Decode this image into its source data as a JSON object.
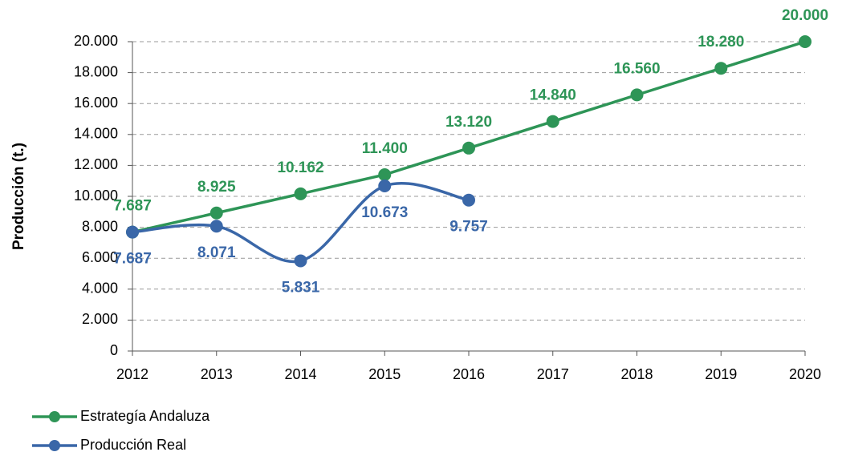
{
  "chart_data": {
    "type": "line",
    "y_label": "Producción (t.)",
    "x": [
      2012,
      2013,
      2014,
      2015,
      2016,
      2017,
      2018,
      2019,
      2020
    ],
    "xlim": [
      2012,
      2020
    ],
    "xticks": [
      2012,
      2013,
      2014,
      2015,
      2016,
      2017,
      2018,
      2019,
      2020
    ],
    "ylim": [
      0,
      20000
    ],
    "yticks": [
      0,
      {
        "value": 2000,
        "label": "2.000"
      },
      {
        "value": 4000,
        "label": "4.000"
      },
      {
        "value": 6000,
        "label": "6.000"
      },
      {
        "value": 8000,
        "label": "8.000"
      },
      {
        "value": 10000,
        "label": "10.000"
      },
      {
        "value": 12000,
        "label": "12.000"
      },
      {
        "value": 14000,
        "label": "14.000"
      },
      {
        "value": 16000,
        "label": "16.000"
      },
      {
        "value": 18000,
        "label": "18.000"
      },
      {
        "value": 20000,
        "label": "20.000"
      }
    ],
    "grid": true,
    "legend": "bottom-left",
    "series": [
      {
        "name": "Estrategía Andaluza",
        "color": "#2e9557",
        "smooth": false,
        "label_side": "above",
        "values": [
          7687,
          8925,
          10162,
          11400,
          13120,
          14840,
          16560,
          18280,
          20000
        ],
        "value_labels": [
          "7.687",
          "8.925",
          "10.162",
          "11.400",
          "13.120",
          "14.840",
          "16.560",
          "18.280",
          "20.000"
        ]
      },
      {
        "name": "Producción Real",
        "color": "#3a67a8",
        "smooth": true,
        "label_side": "below",
        "values": [
          7687,
          8071,
          5831,
          10673,
          9757,
          null,
          null,
          null,
          null
        ],
        "value_labels": [
          "7.687",
          "8.071",
          "5.831",
          "10.673",
          "9.757",
          null,
          null,
          null,
          null
        ]
      }
    ]
  }
}
